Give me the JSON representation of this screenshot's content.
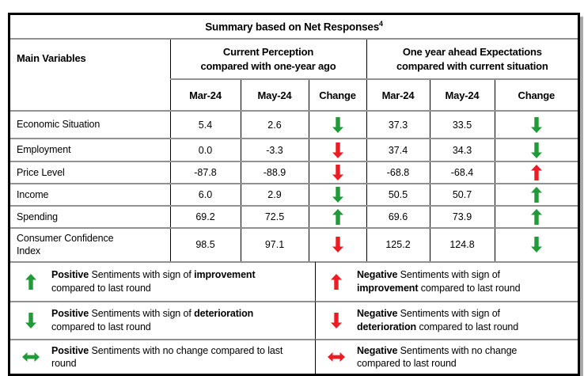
{
  "title": {
    "text": "Summary based on Net Responses",
    "superscript": "4"
  },
  "colors": {
    "green": "#229A3A",
    "red": "#EC1C24"
  },
  "table": {
    "main_variables_header": "Main Variables",
    "groups": [
      {
        "line1": "Current Perception",
        "line2": "compared with one-year ago"
      },
      {
        "line1": "One year ahead Expectations",
        "line2": "compared with current situation"
      }
    ],
    "subheaders": [
      "Mar-24",
      "May-24",
      "Change",
      "Mar-24",
      "May-24",
      "Change"
    ],
    "rows": [
      {
        "label": "Economic Situation",
        "p_mar": "5.4",
        "p_may": "2.6",
        "p_change": "green-down",
        "e_mar": "37.3",
        "e_may": "33.5",
        "e_change": "green-down"
      },
      {
        "label": "Employment",
        "p_mar": "0.0",
        "p_may": "-3.3",
        "p_change": "red-down",
        "e_mar": "37.4",
        "e_may": "34.3",
        "e_change": "green-down"
      },
      {
        "label": "Price Level",
        "p_mar": "-87.8",
        "p_may": "-88.9",
        "p_change": "red-down",
        "e_mar": "-68.8",
        "e_may": "-68.4",
        "e_change": "red-up"
      },
      {
        "label": "Income",
        "p_mar": "6.0",
        "p_may": "2.9",
        "p_change": "green-down",
        "e_mar": "50.5",
        "e_may": "50.7",
        "e_change": "green-up"
      },
      {
        "label": "Spending",
        "p_mar": "69.2",
        "p_may": "72.5",
        "p_change": "green-up",
        "e_mar": "69.6",
        "e_may": "73.9",
        "e_change": "green-up"
      },
      {
        "label": "Consumer Confidence Index",
        "p_mar": "98.5",
        "p_may": "97.1",
        "p_change": "red-down",
        "e_mar": "125.2",
        "e_may": "124.8",
        "e_change": "green-down"
      }
    ]
  },
  "legend": {
    "items": [
      {
        "arrow": "green-up",
        "b1": "Positive",
        "t1": " Sentiments with sign of ",
        "b2": "improvement",
        "t2": " compared to last round"
      },
      {
        "arrow": "red-up",
        "b1": "Negative",
        "t1": " Sentiments with sign of ",
        "b2": "improvement",
        "t2": " compared to last round"
      },
      {
        "arrow": "green-down",
        "b1": "Positive",
        "t1": " Sentiments with sign of ",
        "b2": "deterioration",
        "t2": " compared to last round"
      },
      {
        "arrow": "red-down",
        "b1": "Negative",
        "t1": " Sentiments with sign of ",
        "b2": "deterioration",
        "t2": " compared to last round"
      },
      {
        "arrow": "green-leftright",
        "b1": "Positive",
        "t1": " Sentiments with no change compared to last round",
        "b2": "",
        "t2": ""
      },
      {
        "arrow": "red-leftright",
        "b1": "Negative",
        "t1": " Sentiments with no change compared to last round",
        "b2": "",
        "t2": ""
      }
    ]
  }
}
